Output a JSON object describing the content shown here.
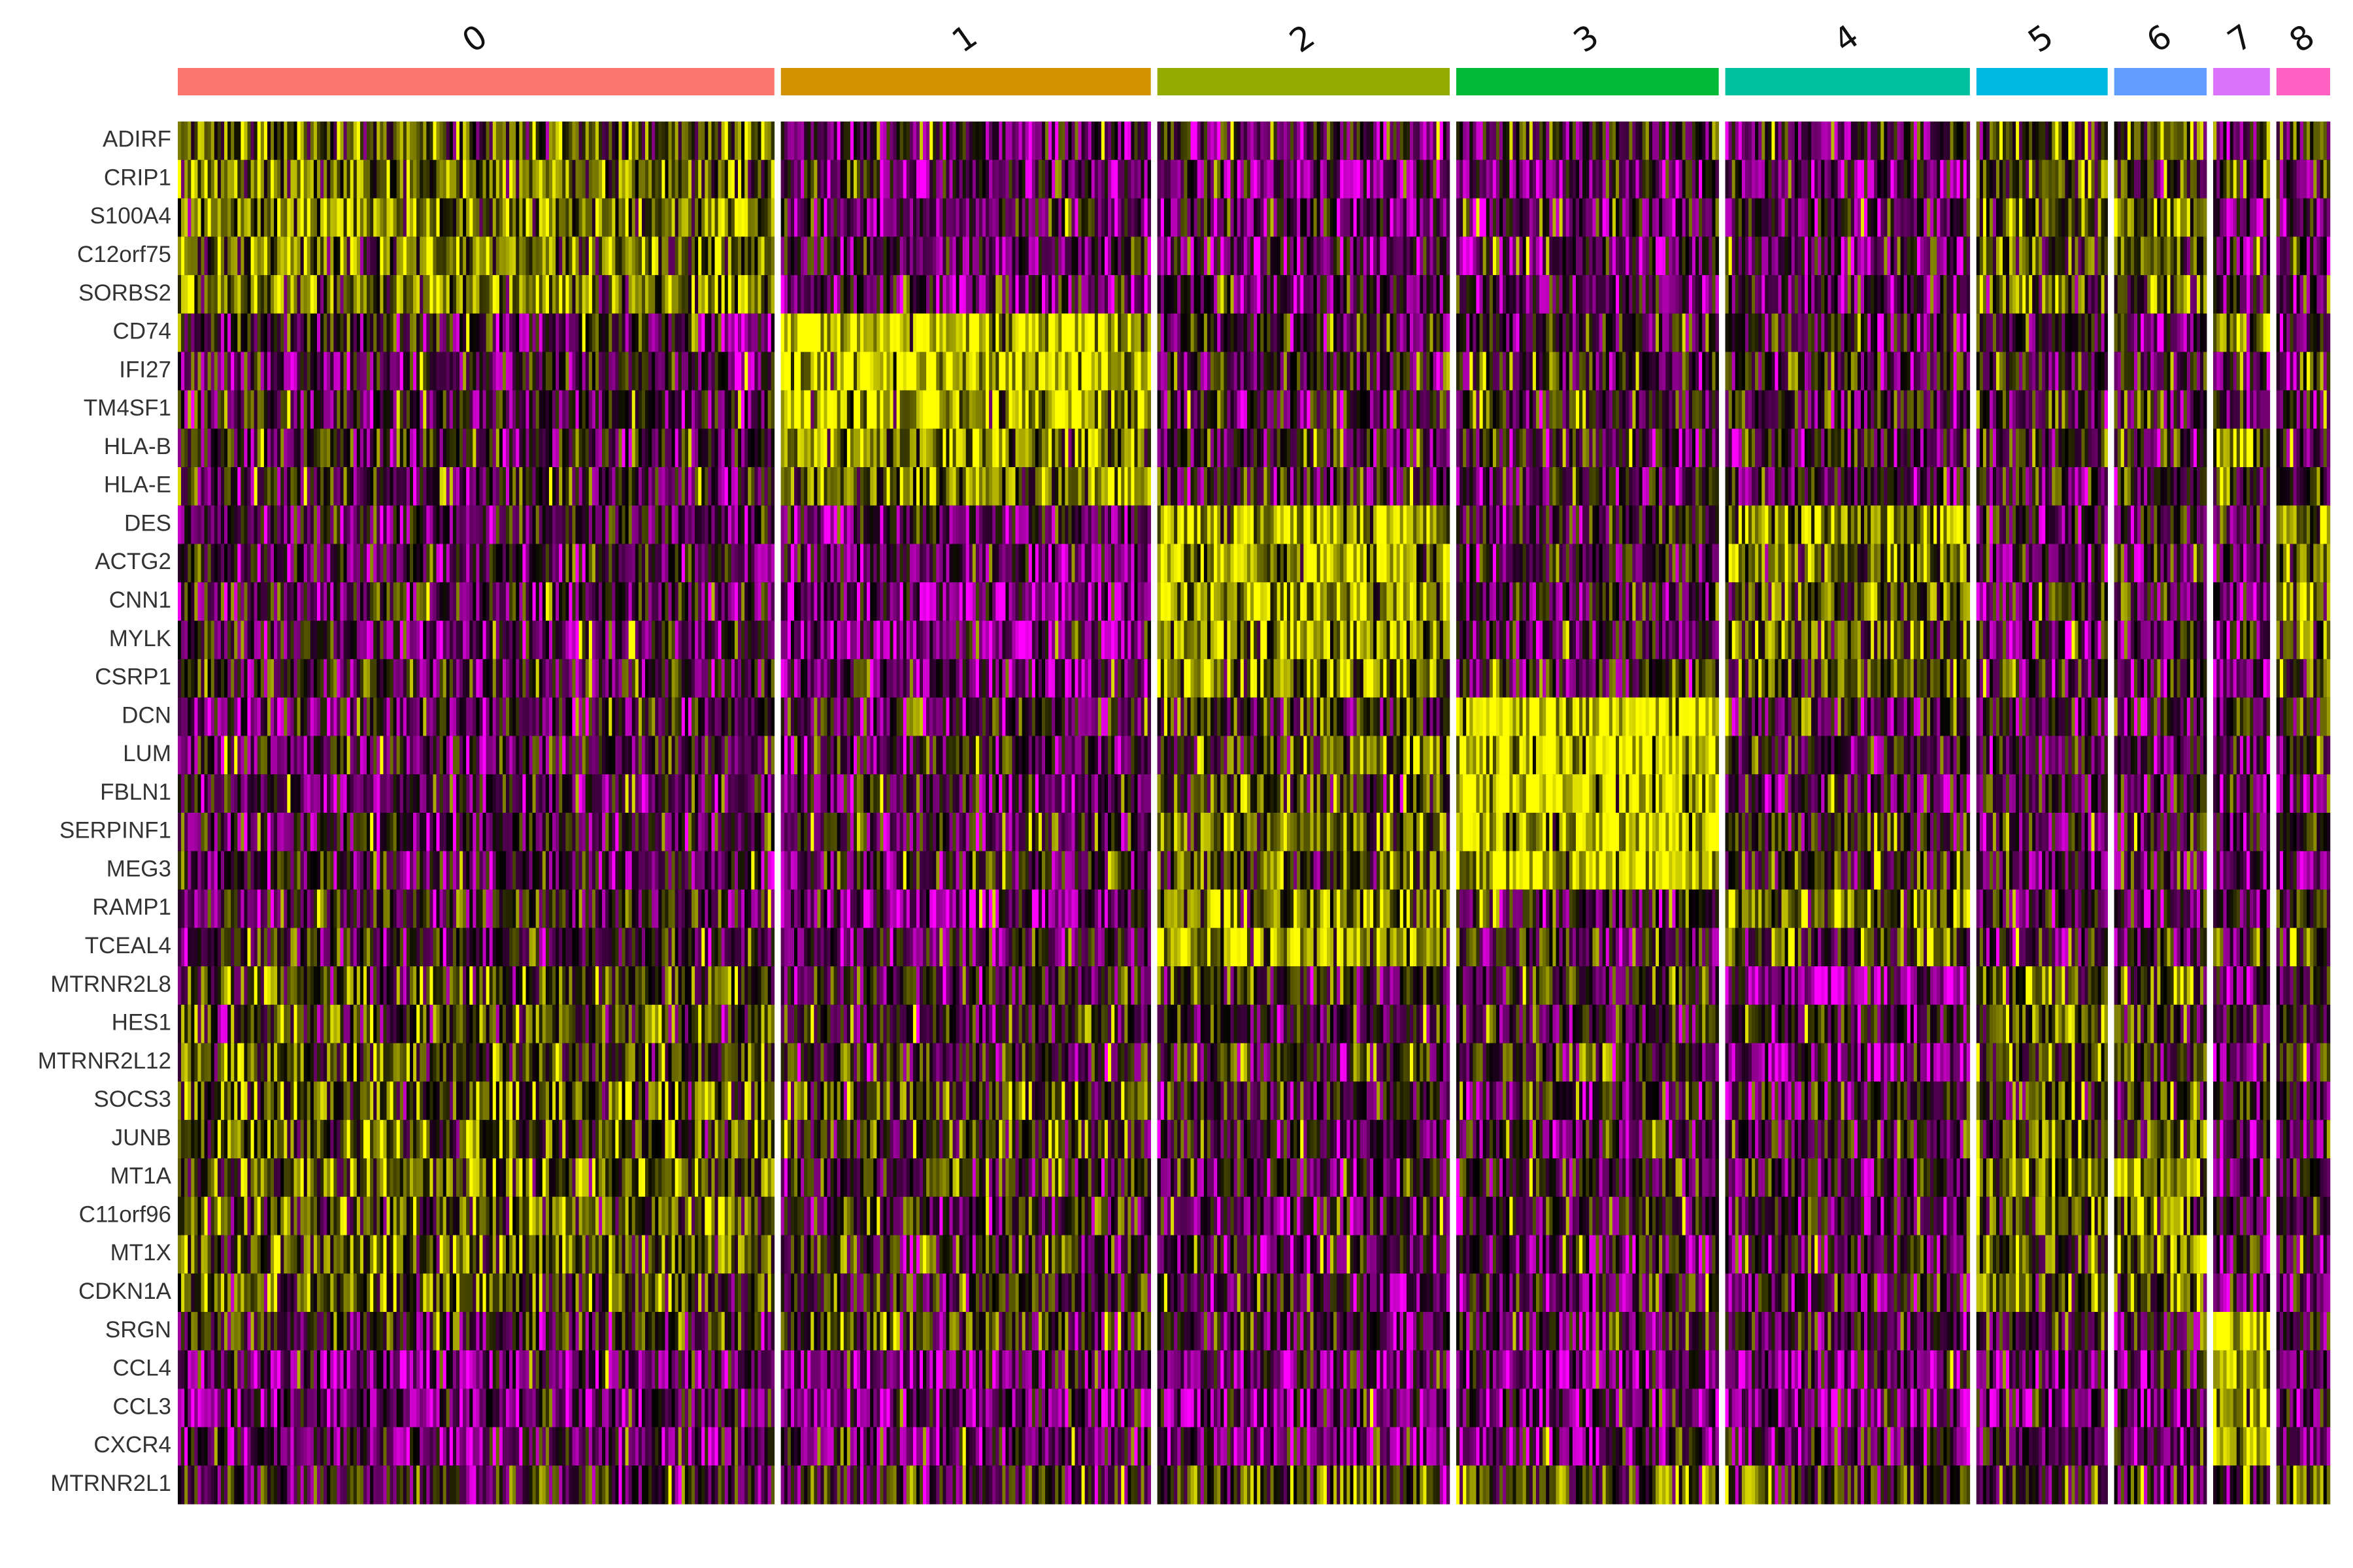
{
  "chart_data": {
    "type": "heatmap",
    "title": "",
    "xlabel": "",
    "ylabel": "",
    "genes": [
      "ADIRF",
      "CRIP1",
      "S100A4",
      "C12orf75",
      "SORBS2",
      "CD74",
      "IFI27",
      "TM4SF1",
      "HLA-B",
      "HLA-E",
      "DES",
      "ACTG2",
      "CNN1",
      "MYLK",
      "CSRP1",
      "DCN",
      "LUM",
      "FBLN1",
      "SERPINF1",
      "MEG3",
      "RAMP1",
      "TCEAL4",
      "MTRNR2L8",
      "HES1",
      "MTRNR2L12",
      "SOCS3",
      "JUNB",
      "MT1A",
      "C11orf96",
      "MT1X",
      "CDKN1A",
      "SRGN",
      "CCL4",
      "CCL3",
      "CXCR4",
      "MTRNR2L1"
    ],
    "clusters": [
      {
        "label": "0",
        "color": "#F8766D",
        "cells": 1000
      },
      {
        "label": "1",
        "color": "#D39200",
        "cells": 620
      },
      {
        "label": "2",
        "color": "#93AA00",
        "cells": 490
      },
      {
        "label": "3",
        "color": "#00BA38",
        "cells": 440
      },
      {
        "label": "4",
        "color": "#00C19F",
        "cells": 410
      },
      {
        "label": "5",
        "color": "#00B9E3",
        "cells": 220
      },
      {
        "label": "6",
        "color": "#619CFF",
        "cells": 155
      },
      {
        "label": "7",
        "color": "#DB72FB",
        "cells": 95
      },
      {
        "label": "8",
        "color": "#FF61C3",
        "cells": 90
      }
    ],
    "color_scale": {
      "low": "#FF00FF",
      "mid": "#000000",
      "high": "#FFFF00"
    },
    "mean_expression": [
      [
        0.75,
        -0.5,
        -0.6,
        -0.3,
        -0.4,
        0.3,
        0.4,
        -0.5,
        -0.2
      ],
      [
        0.85,
        -0.7,
        -0.7,
        -0.6,
        -0.6,
        0.5,
        0.5,
        0.2,
        -0.4
      ],
      [
        0.8,
        -0.6,
        -0.6,
        -0.6,
        -0.6,
        0.4,
        0.7,
        -0.6,
        -0.5
      ],
      [
        0.7,
        -0.7,
        -0.6,
        -0.7,
        -0.6,
        0.4,
        0.6,
        -0.6,
        -0.5
      ],
      [
        0.9,
        -0.6,
        -0.6,
        -0.6,
        -0.6,
        0.5,
        0.7,
        -0.6,
        -0.6
      ],
      [
        -0.4,
        1.6,
        -0.2,
        -0.3,
        -0.3,
        -0.3,
        -0.3,
        0.9,
        -0.3
      ],
      [
        -0.4,
        1.8,
        -0.3,
        -0.3,
        -0.3,
        -0.3,
        -0.3,
        -0.4,
        -0.3
      ],
      [
        -0.3,
        1.3,
        -0.3,
        -0.2,
        -0.3,
        -0.2,
        -0.3,
        -0.4,
        -0.3
      ],
      [
        -0.3,
        1.0,
        -0.3,
        -0.2,
        -0.3,
        -0.2,
        -0.2,
        1.1,
        -0.2
      ],
      [
        -0.3,
        1.0,
        -0.4,
        -0.3,
        -0.3,
        -0.3,
        -0.2,
        0.3,
        -0.3
      ],
      [
        -0.4,
        -0.5,
        1.4,
        -0.3,
        0.8,
        -0.4,
        -0.4,
        -0.6,
        1.0
      ],
      [
        -0.4,
        -0.7,
        1.3,
        -0.4,
        0.7,
        -0.4,
        -0.4,
        -0.7,
        0.8
      ],
      [
        -0.4,
        -0.9,
        1.2,
        -0.4,
        0.6,
        -0.4,
        -0.4,
        -0.8,
        0.6
      ],
      [
        -0.4,
        -0.9,
        1.0,
        -0.4,
        0.5,
        -0.4,
        -0.4,
        -0.7,
        0.5
      ],
      [
        -0.3,
        -0.8,
        1.1,
        -0.3,
        0.5,
        -0.3,
        -0.3,
        -0.6,
        0.6
      ],
      [
        -0.4,
        -0.3,
        0.2,
        1.8,
        -0.3,
        -0.4,
        -0.4,
        -0.4,
        -0.2
      ],
      [
        -0.4,
        -0.3,
        0.3,
        1.7,
        -0.3,
        -0.4,
        -0.4,
        -0.4,
        -0.2
      ],
      [
        -0.5,
        -0.4,
        0.3,
        1.6,
        -0.3,
        -0.4,
        -0.4,
        -0.4,
        -0.3
      ],
      [
        -0.4,
        -0.3,
        0.8,
        1.5,
        0.0,
        -0.4,
        -0.4,
        -0.4,
        -0.2
      ],
      [
        -0.4,
        -0.3,
        0.4,
        1.6,
        0.1,
        -0.4,
        -0.4,
        -0.4,
        -0.3
      ],
      [
        -0.3,
        -0.9,
        1.0,
        -0.3,
        0.8,
        -0.4,
        -0.4,
        -0.4,
        0.5
      ],
      [
        -0.2,
        -0.5,
        1.2,
        -0.2,
        0.6,
        -0.3,
        -0.3,
        -0.4,
        0.4
      ],
      [
        0.4,
        -0.2,
        0.1,
        -0.1,
        -1.1,
        0.6,
        0.3,
        -0.8,
        -0.4
      ],
      [
        0.3,
        -0.1,
        -0.2,
        -0.2,
        -0.3,
        0.7,
        0.3,
        -0.4,
        -0.4
      ],
      [
        0.4,
        -0.1,
        0.0,
        -0.1,
        -1.0,
        0.6,
        0.3,
        -0.8,
        0.2
      ],
      [
        0.5,
        0.3,
        -0.3,
        -0.2,
        -0.4,
        0.5,
        0.3,
        -0.6,
        -0.4
      ],
      [
        0.4,
        0.1,
        -0.3,
        -0.2,
        -0.3,
        0.6,
        0.2,
        -0.7,
        -0.3
      ],
      [
        0.6,
        0.0,
        -0.3,
        -0.2,
        -0.3,
        0.8,
        1.3,
        -0.5,
        -0.4
      ],
      [
        0.5,
        -0.1,
        -0.5,
        -0.3,
        -0.4,
        0.5,
        0.8,
        -0.7,
        -0.5
      ],
      [
        0.6,
        0.0,
        -0.4,
        -0.3,
        -0.3,
        0.5,
        0.8,
        -0.7,
        -0.5
      ],
      [
        0.4,
        0.1,
        -0.6,
        -0.3,
        -0.4,
        0.5,
        0.6,
        -0.7,
        -0.6
      ],
      [
        -0.1,
        0.2,
        -0.4,
        -0.4,
        -0.3,
        -0.3,
        -0.3,
        2.0,
        -0.4
      ],
      [
        -0.8,
        -0.8,
        -0.8,
        -0.8,
        -0.8,
        -0.8,
        -0.8,
        1.3,
        -0.8
      ],
      [
        -0.8,
        -0.8,
        -0.8,
        -0.8,
        -0.8,
        -0.8,
        -0.8,
        1.2,
        -0.8
      ],
      [
        -0.6,
        -0.6,
        -0.6,
        -0.6,
        -0.6,
        -0.6,
        -0.6,
        1.6,
        -0.6
      ],
      [
        -0.3,
        -0.3,
        0.4,
        0.5,
        0.1,
        -0.2,
        -0.2,
        -0.4,
        0.6
      ]
    ]
  }
}
